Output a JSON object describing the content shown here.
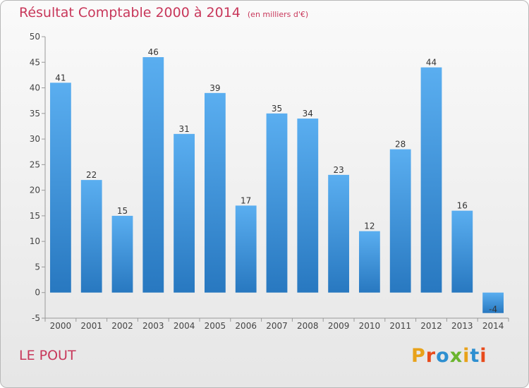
{
  "title": "Résultat Comptable 2000 à 2014",
  "unit": "(en milliers d'€)",
  "town": "LE POUT",
  "brand": {
    "text": "Proxiti",
    "colors": [
      "#e8a21a",
      "#e84b1c",
      "#2e8fd0",
      "#6bb52e",
      "#e8a21a",
      "#2e8fd0",
      "#e84b1c"
    ]
  },
  "colors": {
    "title": "#c8375a",
    "bar_light": "#5aaef0",
    "bar_dark": "#2878c0",
    "label": "#333333"
  },
  "chart_data": {
    "type": "bar",
    "title": "Résultat Comptable 2000 à 2014",
    "xlabel": "",
    "ylabel": "",
    "categories": [
      "2000",
      "2001",
      "2002",
      "2003",
      "2004",
      "2005",
      "2006",
      "2007",
      "2008",
      "2009",
      "2010",
      "2011",
      "2012",
      "2013",
      "2014"
    ],
    "values": [
      41,
      22,
      15,
      46,
      31,
      39,
      17,
      35,
      34,
      23,
      12,
      28,
      44,
      16,
      -4
    ],
    "ylim": [
      -5,
      50
    ],
    "yticks": [
      -5,
      0,
      5,
      10,
      15,
      20,
      25,
      30,
      35,
      40,
      45,
      50
    ],
    "grid": false,
    "legend": "none"
  }
}
